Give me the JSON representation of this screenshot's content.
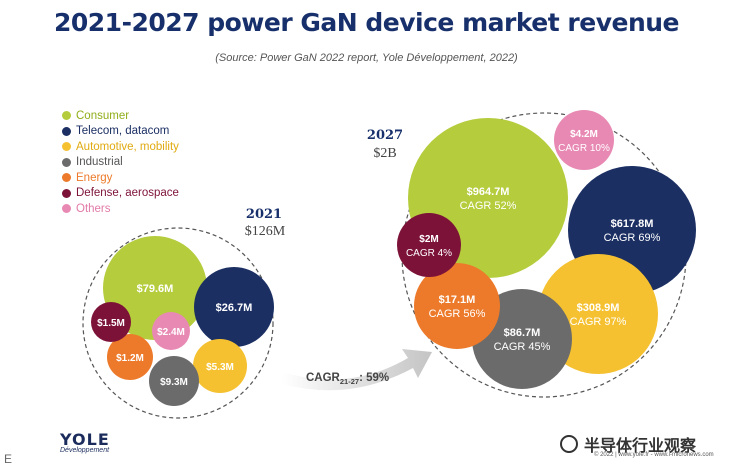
{
  "title": "2021-2027 power GaN device market revenue",
  "source": "(Source: Power GaN 2022 report, Yole Développement, 2022)",
  "colors": {
    "Consumer": "#b5cc3c",
    "Telecom, datacom": "#1b2f63",
    "Automotive, mobility": "#f5c131",
    "Industrial": "#6b6b6b",
    "Energy": "#ec7a2a",
    "Defense, aerospace": "#7d1239",
    "Others": "#e889b4"
  },
  "legend": [
    {
      "label": "Consumer",
      "color": "#b5cc3c"
    },
    {
      "label": "Telecom, datacom",
      "color": "#1b2f63"
    },
    {
      "label": "Automotive, mobility",
      "color": "#f5c131"
    },
    {
      "label": "Industrial",
      "color": "#6b6b6b"
    },
    {
      "label": "Energy",
      "color": "#ec7a2a"
    },
    {
      "label": "Defense, aerospace",
      "color": "#7d1239"
    },
    {
      "label": "Others",
      "color": "#e889b4"
    }
  ],
  "chart_data": [
    {
      "type": "bubble",
      "year": "2021",
      "total": "$126M",
      "series": [
        {
          "name": "Consumer",
          "label": "$79.6M",
          "value": 79.6
        },
        {
          "name": "Telecom, datacom",
          "label": "$26.7M",
          "value": 26.7
        },
        {
          "name": "Automotive, mobility",
          "label": "$5.3M",
          "value": 5.3
        },
        {
          "name": "Industrial",
          "label": "$9.3M",
          "value": 9.3
        },
        {
          "name": "Energy",
          "label": "$1.2M",
          "value": 1.2
        },
        {
          "name": "Defense, aerospace",
          "label": "$1.5M",
          "value": 1.5
        },
        {
          "name": "Others",
          "label": "$2.4M",
          "value": 2.4
        }
      ]
    },
    {
      "type": "bubble",
      "year": "2027",
      "total": "$2B",
      "series": [
        {
          "name": "Consumer",
          "label": "$964.7M",
          "value": 964.7,
          "cagr": "CAGR 52%"
        },
        {
          "name": "Telecom, datacom",
          "label": "$617.8M",
          "value": 617.8,
          "cagr": "CAGR 69%"
        },
        {
          "name": "Automotive, mobility",
          "label": "$308.9M",
          "value": 308.9,
          "cagr": "CAGR 97%"
        },
        {
          "name": "Industrial",
          "label": "$86.7M",
          "value": 86.7,
          "cagr": "CAGR 45%"
        },
        {
          "name": "Energy",
          "label": "$17.1M",
          "value": 17.1,
          "cagr": "CAGR 56%"
        },
        {
          "name": "Defense, aerospace",
          "label": "$2M",
          "value": 2,
          "cagr": "CAGR 4%"
        },
        {
          "name": "Others",
          "label": "$4.2M",
          "value": 4.2,
          "cagr": "CAGR 10%"
        }
      ]
    }
  ],
  "arrow": {
    "prefix": "CAGR",
    "subscript": "21-27",
    "suffix": ": 59%"
  },
  "logo": {
    "name": "YOLE",
    "tagline": "Développement"
  },
  "watermark": "半导体行业观察",
  "copyright": "© 2022 | www.yole.fr - www.i-micronews.com",
  "corner_text": "E"
}
